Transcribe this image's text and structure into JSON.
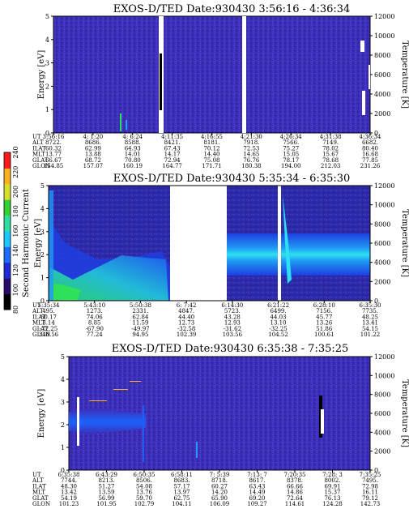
{
  "chart_data": [
    {
      "type": "heatmap",
      "title": "EXOS-D/TED   Date:930430   3:56:16 - 4:36:34",
      "ylabel": "Energy [eV]",
      "y2label": "Temperature [K]",
      "ylim": [
        0,
        5
      ],
      "y2lim": [
        0,
        12000
      ],
      "yticks": [
        "0",
        "1",
        "2",
        "3",
        "4",
        "5"
      ],
      "y2ticks": [
        "0",
        "2000",
        "4000",
        "6000",
        "8000",
        "10000",
        "12000"
      ],
      "data_gaps": [
        [
          0.5,
          0.515
        ],
        [
          0.78,
          0.792
        ]
      ],
      "orbit": {
        "rows": [
          "UT",
          "ALT",
          "ILAT",
          "MLT",
          "GLAT",
          "GLON"
        ],
        "columns": [
          [
            "3:56:16",
            "8722.",
            "60.32",
            "13.77",
            "66.67",
            "154.85"
          ],
          [
            "4: 1:20",
            "8686.",
            "62.99",
            "13.88",
            "68.72",
            "157.07"
          ],
          [
            "4: 6:24",
            "8588.",
            "64.93",
            "14.01",
            "70.80",
            "160.19"
          ],
          [
            "4:11:35",
            "8421.",
            "67.43",
            "14.17",
            "72.94",
            "164.77"
          ],
          [
            "4:16:55",
            "8181.",
            "70.12",
            "14.40",
            "75.08",
            "171.71"
          ],
          [
            "4:21:30",
            "7918.",
            "72.53",
            "14.65",
            "76.76",
            "180.38"
          ],
          [
            "4:26:34",
            "7566.",
            "75.27",
            "15.05",
            "78.17",
            "194.00"
          ],
          [
            "4:31:38",
            "7149.",
            "78.02",
            "15.67",
            "78.68",
            "212.03"
          ],
          [
            "4:36:34",
            "6682.",
            "80.40",
            "16.68",
            "77.85",
            "231.26"
          ]
        ]
      }
    },
    {
      "type": "heatmap",
      "title": "EXOS-D/TED   Date:930430   5:35:34 - 6:35:30",
      "ylabel": "Energy [eV]",
      "y2label": "Temperature [K]",
      "ylim": [
        0,
        5
      ],
      "y2lim": [
        0,
        12000
      ],
      "yticks": [
        "0",
        "1",
        "2",
        "3",
        "4",
        "5"
      ],
      "y2ticks": [
        "0",
        "2000",
        "4000",
        "6000",
        "8000",
        "10000",
        "12000"
      ],
      "data_gaps": [
        [
          0.41,
          0.53
        ],
        [
          0.705,
          0.722
        ]
      ],
      "colorbar": {
        "label": "Second Harmonic Current",
        "ticks": [
          "80",
          "100",
          "120",
          "140",
          "160",
          "180",
          "200",
          "220",
          "240"
        ],
        "colors": [
          "#000000",
          "#2a0a6a",
          "#1f2bd8",
          "#1e6bff",
          "#19c8ff",
          "#2ee0a0",
          "#33d233",
          "#d6e02a",
          "#ffb020",
          "#ff1a1a"
        ]
      },
      "orbit": {
        "rows": [
          "UT",
          "ALT",
          "ILAT",
          "MLT",
          "GLAT",
          "GLON"
        ],
        "columns": [
          [
            "5:35:34",
            "495.",
            "60.17",
            "3.14",
            "-72.25",
            "340.56"
          ],
          [
            "5:43:10",
            "1273.",
            "74.06",
            "8.85",
            "-67.90",
            "77.24"
          ],
          [
            "5:50:38",
            "2331.",
            "62.84",
            "11.59",
            "-49.97",
            "94.95"
          ],
          [
            "6: 7:42",
            "4847.",
            "44.40",
            "12.73",
            "-32.58",
            "102.39"
          ],
          [
            "6:14:30",
            "5723.",
            "43.28",
            "12.93",
            "-31.62",
            "103.56"
          ],
          [
            "6:21:22",
            "6499.",
            "44.03",
            "13.10",
            "-32.25",
            "104.52"
          ],
          [
            "6:28:10",
            "7156.",
            "45.77",
            "13.26",
            "51.86",
            "100.61"
          ],
          [
            "6:35:30",
            "7735.",
            "48.25",
            "13.41",
            "54.15",
            "101.22"
          ]
        ]
      }
    },
    {
      "type": "heatmap",
      "title": "EXOS-D/TED   Date:930430   6:35:38 - 7:35:25",
      "ylabel": "Energy [eV]",
      "y2label": "Temperature [K]",
      "ylim": [
        0,
        5
      ],
      "y2lim": [
        0,
        12000
      ],
      "yticks": [
        "0",
        "1",
        "2",
        "3",
        "4",
        "5"
      ],
      "y2ticks": [
        "0",
        "2000",
        "4000",
        "6000",
        "8000",
        "10000",
        "12000"
      ],
      "data_gaps": [],
      "orbit": {
        "rows": [
          "UT",
          "ALT",
          "ILAT",
          "MLT",
          "GLAT",
          "GLON"
        ],
        "columns": [
          [
            "6:35:38",
            "7744.",
            "48.30",
            "13.42",
            "54.19",
            "101.23"
          ],
          [
            "6:43:29",
            "8213.",
            "51.27",
            "13.59",
            "56.99",
            "101.95"
          ],
          [
            "6:50:35",
            "8506.",
            "54.08",
            "13.76",
            "59.70",
            "102.79"
          ],
          [
            "6:58:11",
            "8683.",
            "57.17",
            "13.97",
            "62.75",
            "104.11"
          ],
          [
            "7: 5:39",
            "8718.",
            "60.27",
            "14.20",
            "65.90",
            "106.09"
          ],
          [
            "7:13: 7",
            "8617.",
            "63.43",
            "14.49",
            "69.20",
            "109.27"
          ],
          [
            "7:20:35",
            "8378.",
            "66.66",
            "14.86",
            "72.64",
            "114.61"
          ],
          [
            "7:28: 3",
            "8002.",
            "69.91",
            "15.37",
            "76.13",
            "124.28"
          ],
          [
            "7:35:25",
            "7495.",
            "72.98",
            "16.11",
            "79.12",
            "142.73"
          ]
        ]
      }
    }
  ]
}
